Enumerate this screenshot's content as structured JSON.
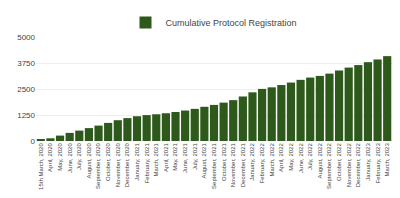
{
  "chart_data": {
    "type": "bar",
    "categories": [
      "15th March,\n2020",
      "April,\n2020",
      "May,\n2020",
      "June,\n2020",
      "July,\n2020",
      "August,\n2020",
      "September,\n2020",
      "October,\n2020",
      "November,\n2020",
      "December,\n2020",
      "January,\n2021",
      "February,\n2021",
      "March,\n2021",
      "April,\n2021",
      "May,\n2021",
      "June,\n2021",
      "July,\n2021",
      "August,\n2021",
      "September,\n2021",
      "October,\n2021",
      "November,\n2021",
      "December,\n2021",
      "January,\n2022",
      "February,\n2022",
      "March,\n2022",
      "April,\n2022",
      "May,\n2022",
      "June,\n2022",
      "July,\n2022",
      "August,\n2022",
      "September,\n2022",
      "October,\n2022",
      "November,\n2022",
      "December,\n2022",
      "January,\n2023",
      "February,\n2023",
      "March,\n2023"
    ],
    "series": [
      {
        "name": "Cumulative Protocol Registration",
        "color": "#2d5a1b",
        "values": [
          55,
          130,
          260,
          390,
          500,
          620,
          740,
          870,
          1000,
          1100,
          1190,
          1245,
          1285,
          1335,
          1395,
          1465,
          1545,
          1645,
          1735,
          1845,
          1965,
          2140,
          2340,
          2505,
          2580,
          2690,
          2810,
          2940,
          3050,
          3130,
          3240,
          3390,
          3530,
          3650,
          3790,
          3920,
          4080
        ]
      }
    ],
    "ylim": [
      0,
      5000
    ],
    "yticks": [
      0,
      1250,
      2500,
      3750,
      5000
    ],
    "grid": true,
    "legend": "top"
  }
}
